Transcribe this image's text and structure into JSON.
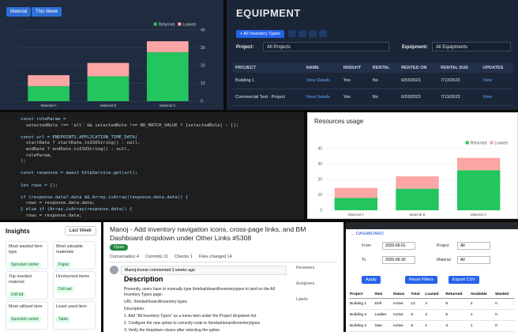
{
  "chart_data": [
    {
      "type": "bar",
      "stacked": true,
      "controls": [
        "Material",
        "This Week"
      ],
      "categories": [
        "Material A",
        "Material B",
        "Material C"
      ],
      "series": [
        {
          "name": "Returned",
          "color": "#22c55e",
          "values": [
            8.4,
            14,
            27.5
          ]
        },
        {
          "name": "Loaned",
          "color": "#fca5a5",
          "values": [
            6.2,
            7.5,
            6.2
          ]
        }
      ],
      "ylim": [
        0,
        40
      ],
      "yticks": [
        0,
        10,
        20,
        30,
        40
      ],
      "y_axis_side": "right",
      "grid": true,
      "legend": "top-right"
    },
    {
      "type": "bar",
      "stacked": true,
      "title": "Resources usage",
      "categories": [
        "Material A",
        "Material B",
        "Material C"
      ],
      "series": [
        {
          "name": "Returned",
          "color": "#22c55e",
          "values": [
            8,
            14,
            26
          ]
        },
        {
          "name": "Loaned",
          "color": "#fca5a5",
          "values": [
            6.5,
            8,
            8
          ]
        }
      ],
      "ylim": [
        0,
        40
      ],
      "yticks": [
        0,
        10,
        20,
        30,
        40
      ],
      "y_axis_side": "left",
      "grid": true,
      "legend": "top-right"
    }
  ],
  "equipment": {
    "title": "EQUIPMENT",
    "filter_button": "+ All Inventory Types",
    "project_label": "Project:",
    "project_value": "All Projects",
    "equipment_label": "Equipment:",
    "equipment_value": "All Equipments",
    "columns": [
      "PROJECT",
      "NAME",
      "INSIGHT",
      "RENTAL",
      "RENTED ON",
      "RENTAL DUE",
      "UPDATES"
    ],
    "rows": [
      [
        "Building 1",
        "View Details",
        "Yes",
        "No",
        "6/03/2023",
        "7/13/2023",
        "View"
      ],
      [
        "Commercial Test - Project",
        "View Details",
        "Yes",
        "No",
        "6/03/2023",
        "7/13/2023",
        "View"
      ]
    ]
  },
  "code": {
    "lines": [
      "const roleParam =",
      "  selectedRole !== 'all' && selectedRole !== NO_MATCH_VALUE ? [selectedRole] : [];",
      "",
      "const url = ENDPOINTS.APPLICATION_TIME_DATA(",
      "  startDate ? startDate.toISOString() : null,",
      "  endDate ? endDate.toISOString() : null,",
      "  roleParam,",
      ");",
      "",
      "const response = await httpService.get(url);",
      "",
      "let rows = [];",
      "",
      "if (response.data?.data && Array.isArray(response.data.data)) {",
      "  rows = response.data.data;",
      "} else if (Array.isArray(response.data)) {",
      "  rows = response.data;"
    ]
  },
  "insights": {
    "title": "Insights",
    "period": "Last Week",
    "cards": [
      {
        "label": "Most wasted item type",
        "value": "Sprocket center"
      },
      {
        "label": "Most valuable materials",
        "value": "Paper"
      },
      {
        "label": "Top needed material",
        "value": "Drill bit"
      },
      {
        "label": "Unreturned items",
        "value": "Drill set"
      },
      {
        "label": "Most utilized item",
        "value": "Sprocket center"
      },
      {
        "label": "Least used item",
        "value": "Table"
      }
    ]
  },
  "pull_request": {
    "title": "Manoj - Add inventory navigation icons, cross-page links, and BM Dashboard dropdown under Other Links #5308",
    "status": "Open",
    "tabs": [
      "Conversation 4",
      "Commits 11",
      "Checks 1",
      "Files changed 14"
    ],
    "comment_header": "Manoj-Invest commented 3 weeks ago",
    "heading": "Description",
    "body": [
      "Presently, users have to manually type /bmdashboard/inventorytypes to land on the All Inventory Types page.",
      "URL: /bmdashboard/inventory-types",
      "Description:",
      "1. Add \"All Inventory Types\" as a menu item under the Project dropdown list.",
      "2. Configure the new option to correctly route to /bmdashboard/inventorytypes",
      "3. Verify the dropdown closes after selecting the option"
    ],
    "sidebar": [
      "Reviewers",
      "Assignees",
      "Labels"
    ]
  },
  "report": {
    "back": "← DASHBOARD",
    "fields": [
      {
        "label": "From",
        "value": "2025-06-01"
      },
      {
        "label": "Project",
        "value": "All"
      },
      {
        "label": "To",
        "value": "2025-06-30"
      },
      {
        "label": "Material",
        "value": "All"
      }
    ],
    "buttons": [
      "Apply",
      "Reset Filters",
      "Export CSV"
    ],
    "columns": [
      "Project",
      "Item",
      "Status",
      "Total",
      "Loaned",
      "Returned",
      "Available",
      "Wasted"
    ],
    "rows": [
      [
        "Building 1",
        "Drill",
        "Active",
        "12",
        "4",
        "6",
        "2",
        "0"
      ],
      [
        "Building 2",
        "Ladder",
        "Active",
        "8",
        "2",
        "5",
        "1",
        "0"
      ],
      [
        "Building 3",
        "Saw",
        "Active",
        "5",
        "1",
        "3",
        "1",
        "0"
      ]
    ]
  }
}
